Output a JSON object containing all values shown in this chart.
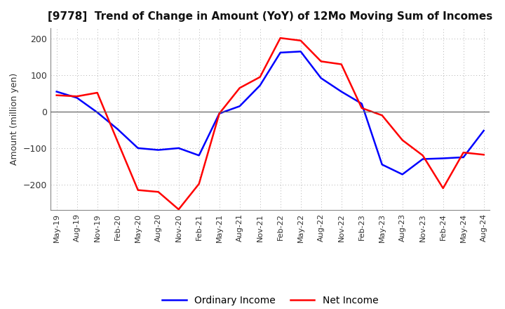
{
  "title": "[9778]  Trend of Change in Amount (YoY) of 12Mo Moving Sum of Incomes",
  "ylabel": "Amount (million yen)",
  "xlabels": [
    "May-19",
    "Aug-19",
    "Nov-19",
    "Feb-20",
    "May-20",
    "Aug-20",
    "Nov-20",
    "Feb-21",
    "May-21",
    "Aug-21",
    "Nov-21",
    "Feb-22",
    "May-22",
    "Aug-22",
    "Nov-22",
    "Feb-23",
    "May-23",
    "Aug-23",
    "Nov-23",
    "Feb-24",
    "May-24",
    "Aug-24"
  ],
  "ordinary_income": [
    55,
    38,
    -2,
    -48,
    -100,
    -105,
    -100,
    -120,
    -5,
    15,
    72,
    162,
    165,
    92,
    55,
    22,
    -145,
    -172,
    -130,
    -128,
    -125,
    -52
  ],
  "net_income": [
    45,
    42,
    52,
    -82,
    -215,
    -220,
    -268,
    -198,
    -5,
    65,
    95,
    202,
    195,
    138,
    130,
    10,
    -10,
    -78,
    -120,
    -210,
    -112,
    -118
  ],
  "ordinary_color": "#0000ff",
  "net_color": "#ff0000",
  "ylim": [
    -270,
    230
  ],
  "yticks": [
    -200,
    -100,
    0,
    100,
    200
  ],
  "legend_labels": [
    "Ordinary Income",
    "Net Income"
  ],
  "bg_color": "#ffffff",
  "grid_color": "#b0b0b0",
  "line_width": 1.8,
  "title_fontsize": 11,
  "ylabel_fontsize": 9,
  "tick_fontsize": 8,
  "legend_fontsize": 10
}
